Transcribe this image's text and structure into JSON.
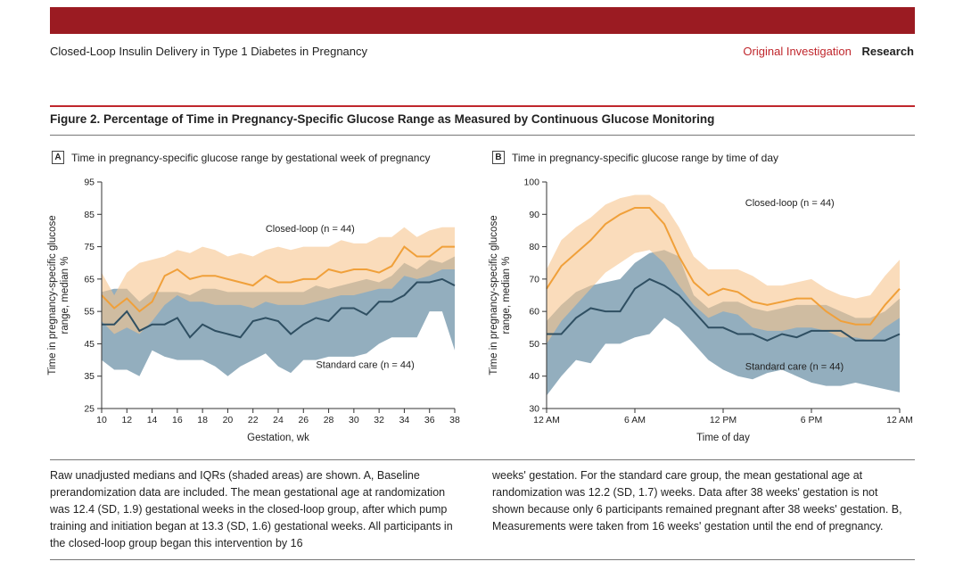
{
  "header": {
    "running_title": "Closed-Loop Insulin Delivery in Type 1 Diabetes in Pregnancy",
    "section_original": "Original Investigation",
    "section_research": "Research"
  },
  "figure": {
    "title": "Figure 2. Percentage of Time in Pregnancy-Specific Glucose Range as Measured by Continuous Glucose Monitoring"
  },
  "caption": {
    "left": "Raw unadjusted medians and IQRs (shaded areas) are shown. A, Baseline prerandomization data are included. The mean gestational age at randomization was 12.4 (SD, 1.9) gestational weeks in the closed-loop group, after which pump training and initiation began at 13.3 (SD, 1.6) gestational weeks. All participants in the closed-loop group began this intervention by 16",
    "right": "weeks' gestation. For the standard care group, the mean gestational age at randomization was 12.2 (SD, 1.7) weeks. Data after 38 weeks' gestation is not shown because only 6 participants remained pregnant after 38 weeks' gestation. B, Measurements were taken from 16 weeks' gestation until the end of pregnancy."
  },
  "colors": {
    "closed_loop_line": "#f0a03a",
    "closed_loop_band": "#f7c48e",
    "standard_line": "#2f4f62",
    "standard_band": "#6f93a8"
  },
  "chart_data": [
    {
      "type": "line",
      "panel_letter": "A",
      "panel_title": "Time in pregnancy-specific glucose range by gestational week of pregnancy",
      "xlabel": "Gestation, wk",
      "ylabel": "Time in pregnancy-specific glucose range, median %",
      "xlim": [
        10,
        38
      ],
      "ylim": [
        25,
        95
      ],
      "x_ticks": [
        10,
        12,
        14,
        16,
        18,
        20,
        22,
        24,
        26,
        28,
        30,
        32,
        34,
        36,
        38
      ],
      "y_ticks": [
        25,
        35,
        45,
        55,
        65,
        75,
        85,
        95
      ],
      "x": [
        10,
        11,
        12,
        13,
        14,
        15,
        16,
        17,
        18,
        19,
        20,
        21,
        22,
        23,
        24,
        25,
        26,
        27,
        28,
        29,
        30,
        31,
        32,
        33,
        34,
        35,
        36,
        37,
        38
      ],
      "series": [
        {
          "name": "Closed-loop (n = 44)",
          "median": [
            60,
            56,
            59,
            55,
            58,
            66,
            68,
            65,
            66,
            66,
            65,
            64,
            63,
            66,
            64,
            64,
            65,
            65,
            68,
            67,
            68,
            68,
            67,
            69,
            75,
            72,
            72,
            75,
            75
          ],
          "q1": [
            52,
            48,
            50,
            48,
            52,
            57,
            60,
            58,
            58,
            57,
            57,
            57,
            56,
            58,
            57,
            57,
            57,
            58,
            59,
            60,
            60,
            61,
            62,
            62,
            66,
            65,
            66,
            68,
            68
          ],
          "q3": [
            67,
            60,
            67,
            70,
            71,
            72,
            74,
            73,
            75,
            74,
            72,
            73,
            72,
            74,
            75,
            74,
            75,
            75,
            75,
            77,
            76,
            76,
            78,
            78,
            81,
            78,
            80,
            81,
            81
          ]
        },
        {
          "name": "Standard care (n = 44)",
          "median": [
            51,
            51,
            55,
            49,
            51,
            51,
            53,
            47,
            51,
            49,
            48,
            47,
            52,
            53,
            52,
            48,
            51,
            53,
            52,
            56,
            56,
            54,
            58,
            58,
            60,
            64,
            64,
            65,
            63
          ],
          "q1": [
            40,
            37,
            37,
            35,
            43,
            41,
            40,
            40,
            40,
            38,
            35,
            38,
            40,
            42,
            38,
            36,
            40,
            40,
            41,
            41,
            41,
            42,
            45,
            47,
            47,
            47,
            55,
            55,
            43
          ],
          "q3": [
            61,
            62,
            62,
            58,
            61,
            61,
            61,
            60,
            62,
            62,
            61,
            61,
            61,
            61,
            61,
            61,
            61,
            63,
            62,
            63,
            64,
            65,
            64,
            66,
            70,
            68,
            71,
            70,
            72
          ]
        }
      ],
      "annotations": [
        {
          "text": "Closed-loop (n = 44)",
          "x": 23,
          "y": 79.5
        },
        {
          "text": "Standard care (n = 44)",
          "x": 27,
          "y": 37.5
        }
      ]
    },
    {
      "type": "line",
      "panel_letter": "B",
      "panel_title": "Time in pregnancy-specific glucose range by time of day",
      "xlabel": "Time of day",
      "ylabel": "Time in pregnancy-specific glucose range, median %",
      "xlim": [
        0,
        24
      ],
      "ylim": [
        30,
        100
      ],
      "x_ticks": [
        0,
        6,
        12,
        18,
        24
      ],
      "x_tick_labels": [
        "12 AM",
        "6 AM",
        "12 PM",
        "6 PM",
        "12 AM"
      ],
      "y_ticks": [
        30,
        40,
        50,
        60,
        70,
        80,
        90,
        100
      ],
      "x": [
        0,
        1,
        2,
        3,
        4,
        5,
        6,
        7,
        8,
        9,
        10,
        11,
        12,
        13,
        14,
        15,
        16,
        17,
        18,
        19,
        20,
        21,
        22,
        23,
        24
      ],
      "series": [
        {
          "name": "Closed-loop (n = 44)",
          "median": [
            67,
            74,
            78,
            82,
            87,
            90,
            92,
            92,
            87,
            77,
            69,
            65,
            67,
            66,
            63,
            62,
            63,
            64,
            64,
            60,
            57,
            56,
            56,
            62,
            67
          ],
          "q1": [
            50,
            57,
            62,
            67,
            72,
            75,
            78,
            79,
            75,
            68,
            62,
            58,
            60,
            59,
            55,
            54,
            54,
            55,
            55,
            54,
            52,
            52,
            51,
            55,
            58
          ],
          "q3": [
            73,
            82,
            86,
            89,
            93,
            95,
            96,
            96,
            93,
            86,
            77,
            73,
            73,
            73,
            71,
            68,
            68,
            69,
            70,
            67,
            65,
            64,
            65,
            71,
            76
          ]
        },
        {
          "name": "Standard care (n = 44)",
          "median": [
            53,
            53,
            58,
            61,
            60,
            60,
            67,
            70,
            68,
            65,
            60,
            55,
            55,
            53,
            53,
            51,
            53,
            52,
            54,
            54,
            54,
            51,
            51,
            51,
            53
          ],
          "q1": [
            34,
            40,
            45,
            44,
            50,
            50,
            52,
            53,
            58,
            55,
            50,
            45,
            42,
            40,
            39,
            41,
            42,
            40,
            38,
            37,
            37,
            38,
            37,
            36,
            35
          ],
          "q3": [
            57,
            62,
            66,
            68,
            69,
            70,
            75,
            78,
            79,
            77,
            65,
            61,
            63,
            63,
            61,
            60,
            61,
            62,
            62,
            62,
            60,
            58,
            58,
            60,
            64
          ]
        }
      ],
      "annotations": [
        {
          "text": "Closed-loop (n = 44)",
          "x": 13.5,
          "y": 92.5
        },
        {
          "text": "Standard care (n = 44)",
          "x": 13.5,
          "y": 42
        }
      ]
    }
  ]
}
